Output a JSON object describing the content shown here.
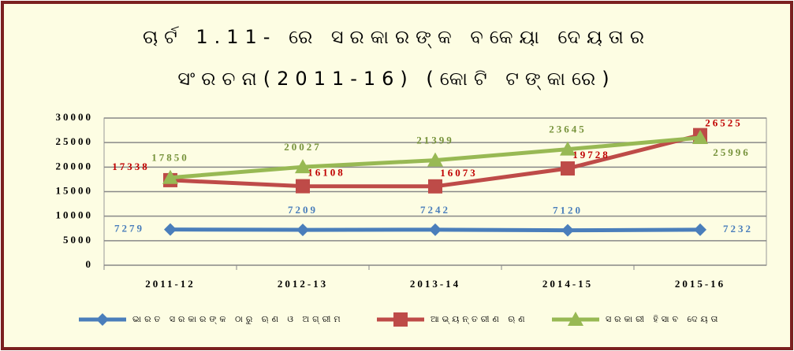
{
  "chart_data": {
    "type": "line",
    "title": "ଚାର୍ଟ 1.11- ରେ ସରକାରଙ୍କ ବକେୟା ଦେୟତାର",
    "subtitle": "ସଂରଚନା(2011-16) (କୋଟି ଟଙ୍କାରେ)",
    "categories": [
      "2011-12",
      "2012-13",
      "2013-14",
      "2014-15",
      "2015-16"
    ],
    "series": [
      {
        "name": "ଭାରତ ସରକାରଙ୍କ ଠାରୁ ଋଣ ଓ ଅଗ୍ରୀମ",
        "color": "#4a7ebb",
        "marker": "diamond",
        "values": [
          7279,
          7209,
          7242,
          7120,
          7232
        ]
      },
      {
        "name": "ଆଭ୍ୟନ୍ତରୀଣ ଋଣ",
        "color": "#be4b48",
        "marker": "square",
        "values": [
          17338,
          16108,
          16073,
          19728,
          26525
        ]
      },
      {
        "name": "ସରକାରୀ ହିସାବ ଦେୟତା",
        "color": "#98b954",
        "marker": "triangle",
        "values": [
          17850,
          20027,
          21399,
          23645,
          25996
        ]
      }
    ],
    "ylim": [
      0,
      30000
    ],
    "yticks": [
      0,
      5000,
      10000,
      15000,
      20000,
      25000,
      30000
    ],
    "grid": true
  }
}
